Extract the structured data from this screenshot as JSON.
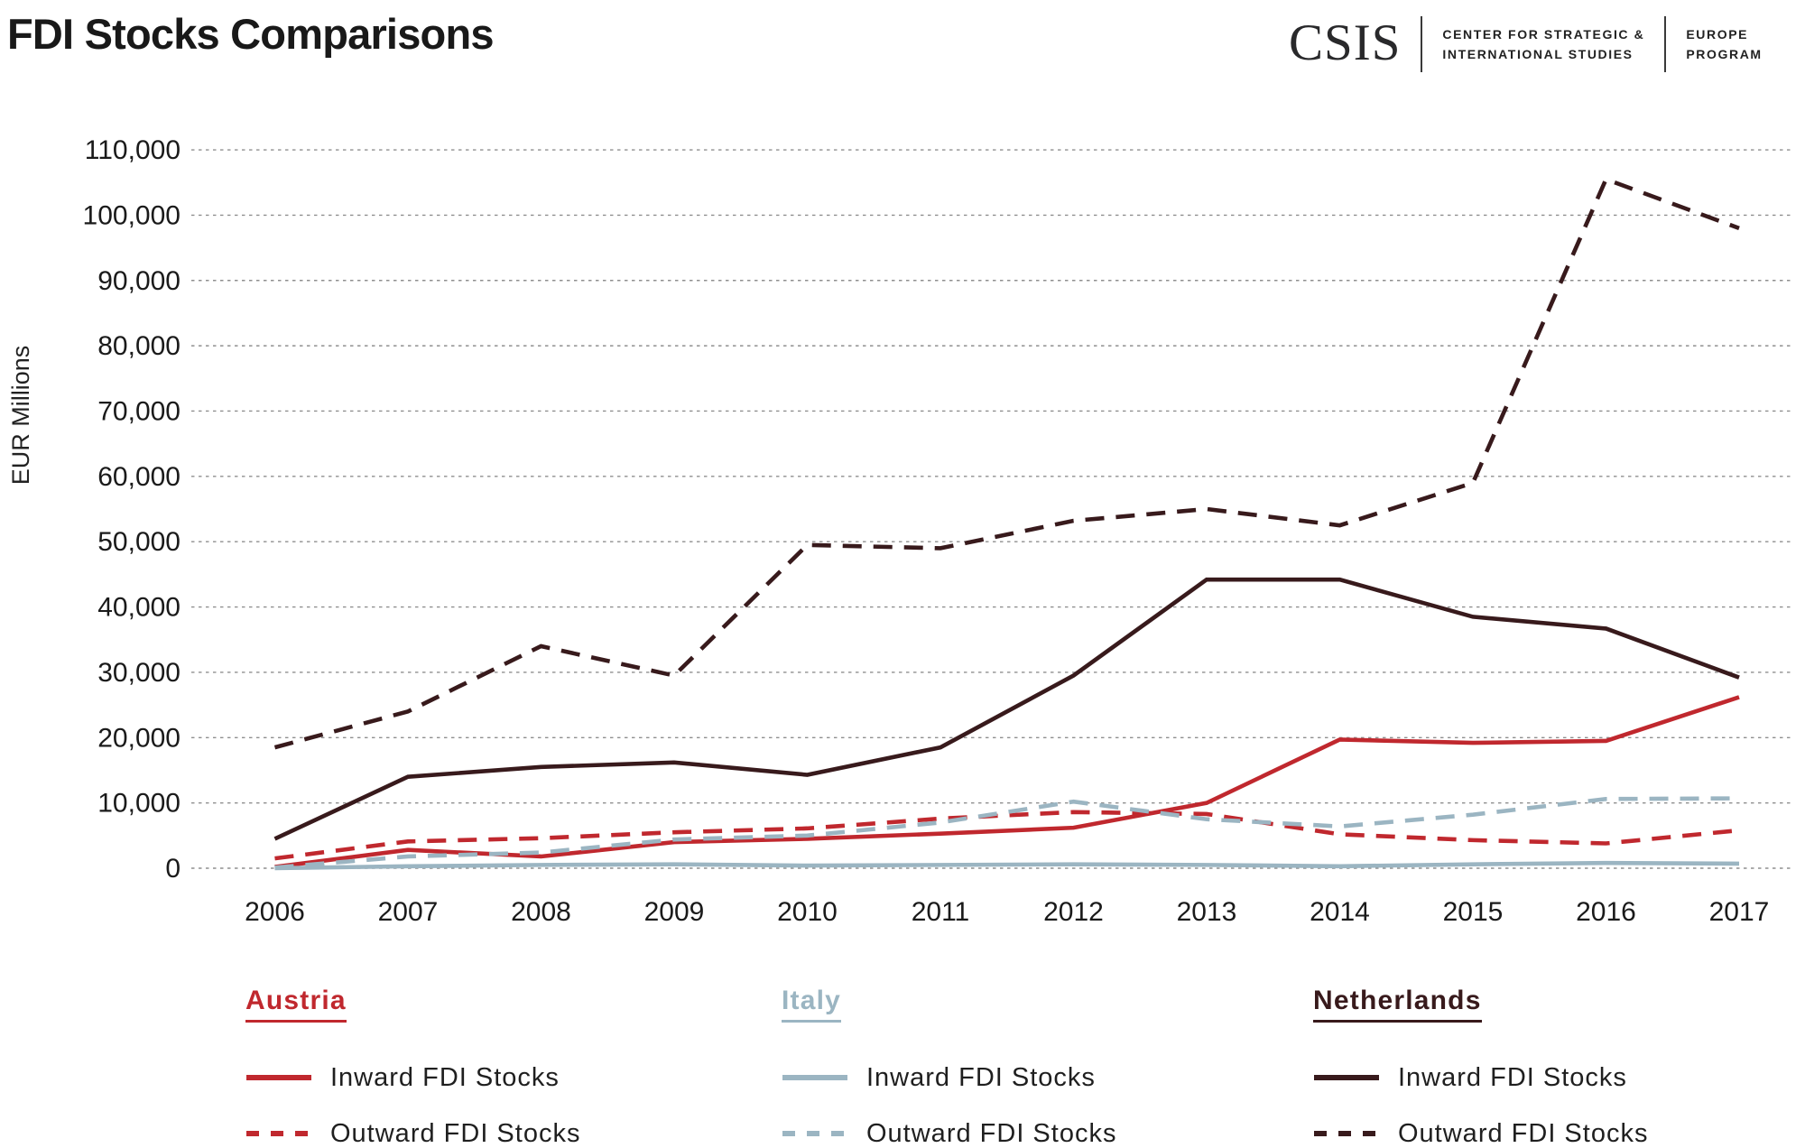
{
  "header": {
    "title": "FDI Stocks Comparisons",
    "logo": {
      "acronym": "CSIS",
      "org_line1": "CENTER FOR STRATEGIC &",
      "org_line2": "INTERNATIONAL STUDIES",
      "program_line1": "EUROPE",
      "program_line2": "PROGRAM"
    }
  },
  "chart_data": {
    "type": "line",
    "title": "FDI Stocks Comparisons",
    "xlabel": "",
    "ylabel": "EUR Millions",
    "x": [
      2006,
      2007,
      2008,
      2009,
      2010,
      2011,
      2012,
      2013,
      2014,
      2015,
      2016,
      2017
    ],
    "ylim": [
      0,
      110000
    ],
    "y_tick_step": 10000,
    "grid": "horizontal-dotted",
    "legend_position": "bottom",
    "series": [
      {
        "name": "Austria Inward FDI Stocks",
        "country": "Austria",
        "direction": "Inward",
        "style": "solid",
        "color": "#c0282e",
        "values": [
          200,
          2800,
          1800,
          4000,
          4500,
          5300,
          6200,
          10000,
          19700,
          19200,
          19500,
          26200
        ]
      },
      {
        "name": "Austria Outward FDI Stocks",
        "country": "Austria",
        "direction": "Outward",
        "style": "dashed",
        "color": "#c0282e",
        "values": [
          1500,
          4100,
          4600,
          5500,
          6100,
          7600,
          8600,
          8300,
          5200,
          4300,
          3800,
          5800
        ]
      },
      {
        "name": "Italy Inward FDI Stocks",
        "country": "Italy",
        "direction": "Inward",
        "style": "solid",
        "color": "#9bb5c2",
        "values": [
          0,
          300,
          500,
          600,
          400,
          500,
          600,
          500,
          300,
          600,
          800,
          700
        ]
      },
      {
        "name": "Italy Outward FDI Stocks",
        "country": "Italy",
        "direction": "Outward",
        "style": "dashed",
        "color": "#9bb5c2",
        "values": [
          100,
          1800,
          2400,
          4400,
          5000,
          7000,
          10200,
          7500,
          6400,
          8200,
          10600,
          10700
        ]
      },
      {
        "name": "Netherlands Inward FDI Stocks",
        "country": "Netherlands",
        "direction": "Inward",
        "style": "solid",
        "color": "#381a1c",
        "values": [
          4500,
          14000,
          15500,
          16200,
          14300,
          18500,
          29500,
          44200,
          44200,
          38500,
          36700,
          29200
        ]
      },
      {
        "name": "Netherlands Outward FDI Stocks",
        "country": "Netherlands",
        "direction": "Outward",
        "style": "dashed",
        "color": "#381a1c",
        "values": [
          18500,
          24000,
          34000,
          29500,
          49500,
          49000,
          53200,
          55000,
          52500,
          59000,
          105500,
          98000
        ]
      }
    ]
  },
  "legend": {
    "groups": [
      {
        "label": "Austria",
        "color": "#c0282e",
        "items": [
          {
            "label": "Inward FDI Stocks",
            "style": "solid"
          },
          {
            "label": "Outward FDI Stocks",
            "style": "dashed"
          }
        ]
      },
      {
        "label": "Italy",
        "color": "#9bb5c2",
        "items": [
          {
            "label": "Inward FDI Stocks",
            "style": "solid"
          },
          {
            "label": "Outward FDI Stocks",
            "style": "dashed"
          }
        ]
      },
      {
        "label": "Netherlands",
        "color": "#381a1c",
        "items": [
          {
            "label": "Inward FDI Stocks",
            "style": "solid"
          },
          {
            "label": "Outward FDI Stocks",
            "style": "dashed"
          }
        ]
      }
    ]
  }
}
